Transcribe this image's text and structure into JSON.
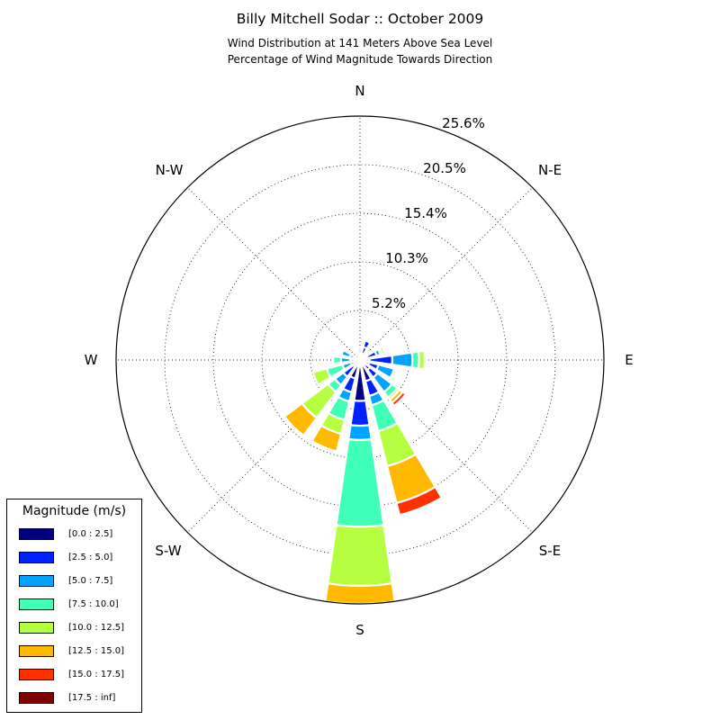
{
  "title": "Billy Mitchell Sodar :: October 2009",
  "subtitle_lines": [
    "Wind Distribution at 141 Meters Above Sea Level",
    "Percentage of Wind Magnitude Towards Direction"
  ],
  "chart_data": {
    "type": "windrose",
    "direction_labels": {
      "N": "N",
      "NE": "N-E",
      "E": "E",
      "SE": "S-E",
      "S": "S",
      "SW": "S-W",
      "W": "W",
      "NW": "N-W"
    },
    "radial_ticks": [
      "5.2%",
      "10.3%",
      "15.4%",
      "20.5%",
      "25.6%"
    ],
    "radial_max": 25.6,
    "legend_title": "Magnitude (m/s)",
    "bins": [
      {
        "label": "[0.0 : 2.5]",
        "color": "#000080"
      },
      {
        "label": "[2.5 : 5.0]",
        "color": "#0020ff"
      },
      {
        "label": "[5.0 : 7.5]",
        "color": "#00a4ff"
      },
      {
        "label": "[7.5 : 10.0]",
        "color": "#40ffb6"
      },
      {
        "label": "[10.0 : 12.5]",
        "color": "#b6ff40"
      },
      {
        "label": "[12.5 : 15.0]",
        "color": "#ffb900"
      },
      {
        "label": "[15.0 : 17.5]",
        "color": "#ff3000"
      },
      {
        "label": "[17.5 : inf]",
        "color": "#800000"
      }
    ],
    "directions": [
      {
        "direction_deg": 0,
        "cumulative": [
          0.8,
          1.1
        ]
      },
      {
        "direction_deg": 22.5,
        "cumulative": [
          1.4,
          2.1,
          2.3
        ]
      },
      {
        "direction_deg": 45,
        "cumulative": [
          0.6,
          0.7,
          0.8,
          0.9,
          1.1
        ]
      },
      {
        "direction_deg": 67.5,
        "cumulative": [
          0.8,
          1.8,
          2.2,
          2.4,
          2.7,
          2.8
        ]
      },
      {
        "direction_deg": 90,
        "cumulative": [
          1.0,
          3.4,
          5.5,
          6.2,
          6.8
        ]
      },
      {
        "direction_deg": 112.5,
        "cumulative": [
          1.0,
          2.0,
          3.7,
          3.9,
          4.0
        ]
      },
      {
        "direction_deg": 135,
        "cumulative": [
          1.3,
          2.3,
          4.2,
          4.9,
          5.2,
          5.6,
          6.0
        ]
      },
      {
        "direction_deg": 157.5,
        "cumulative": [
          2.3,
          3.9,
          4.9,
          7.7,
          11.5,
          15.5,
          16.8
        ]
      },
      {
        "direction_deg": 180,
        "cumulative": [
          4.3,
          6.9,
          8.4,
          17.5,
          23.7,
          25.6
        ]
      },
      {
        "direction_deg": 202.5,
        "cumulative": [
          2.0,
          3.5,
          4.5,
          6.5,
          8.0,
          9.9
        ]
      },
      {
        "direction_deg": 225,
        "cumulative": [
          0.9,
          2.2,
          3.3,
          4.2,
          7.6,
          9.9
        ]
      },
      {
        "direction_deg": 247.5,
        "cumulative": [
          0.5,
          1.0,
          1.9,
          3.6,
          5.1
        ]
      },
      {
        "direction_deg": 270,
        "cumulative": [
          0.5,
          1.0,
          2.0,
          2.8
        ]
      },
      {
        "direction_deg": 292.5,
        "cumulative": [
          0.5,
          1.1,
          2.0,
          2.2
        ]
      }
    ]
  }
}
